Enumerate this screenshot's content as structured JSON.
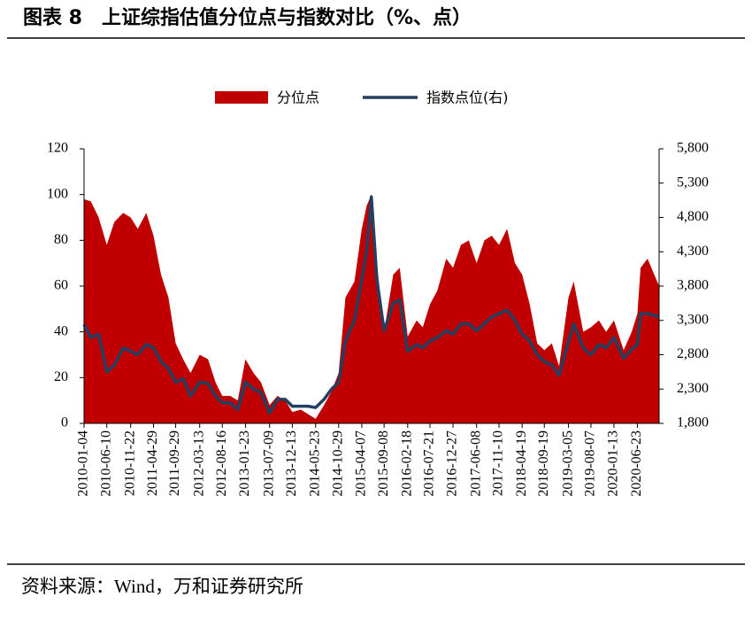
{
  "chart_data": {
    "type": "area-line",
    "title": "图表 8　上证综指估值分位点与指数对比（%、点）",
    "source": "资料来源：Wind，万和证券研究所",
    "x": [
      "2010-01-04",
      "2010-02-20",
      "2010-04-15",
      "2010-06-10",
      "2010-08-01",
      "2010-10-01",
      "2010-11-22",
      "2011-01-10",
      "2011-03-10",
      "2011-04-29",
      "2011-06-20",
      "2011-08-10",
      "2011-09-29",
      "2011-11-20",
      "2012-01-10",
      "2012-03-13",
      "2012-05-10",
      "2012-06-30",
      "2012-08-16",
      "2012-10-10",
      "2012-12-01",
      "2013-01-23",
      "2013-03-20",
      "2013-05-10",
      "2013-07-09",
      "2013-09-01",
      "2013-10-25",
      "2013-12-13",
      "2014-02-10",
      "2014-04-01",
      "2014-05-23",
      "2014-07-20",
      "2014-09-10",
      "2014-10-29",
      "2014-12-15",
      "2015-02-15",
      "2015-04-07",
      "2015-05-10",
      "2015-06-12",
      "2015-07-20",
      "2015-09-08",
      "2015-11-10",
      "2015-12-25",
      "2016-02-18",
      "2016-04-20",
      "2016-06-01",
      "2016-07-21",
      "2016-09-10",
      "2016-11-10",
      "2016-12-27",
      "2017-02-20",
      "2017-04-15",
      "2017-06-08",
      "2017-08-01",
      "2017-09-20",
      "2017-11-10",
      "2018-01-05",
      "2018-02-28",
      "2018-04-19",
      "2018-06-10",
      "2018-08-01",
      "2018-09-19",
      "2018-11-10",
      "2018-12-30",
      "2019-03-05",
      "2019-04-10",
      "2019-06-15",
      "2019-08-07",
      "2019-10-01",
      "2019-11-20",
      "2020-01-13",
      "2020-03-20",
      "2020-05-15",
      "2020-06-23",
      "2020-07-15",
      "2020-09-01",
      "2020-11-20"
    ],
    "series": [
      {
        "name": "分位点",
        "color": "#c00000",
        "axis": "y",
        "values": [
          98,
          97,
          90,
          78,
          88,
          92,
          90,
          85,
          92,
          82,
          65,
          55,
          35,
          28,
          22,
          30,
          28,
          18,
          12,
          12,
          10,
          28,
          22,
          18,
          8,
          12,
          10,
          5,
          6,
          4,
          2,
          8,
          14,
          22,
          55,
          62,
          85,
          95,
          100,
          70,
          40,
          65,
          68,
          38,
          45,
          42,
          52,
          58,
          72,
          68,
          78,
          80,
          70,
          80,
          82,
          78,
          85,
          70,
          65,
          52,
          35,
          32,
          35,
          25,
          55,
          62,
          40,
          42,
          45,
          40,
          45,
          32,
          40,
          48,
          68,
          72,
          60
        ]
      },
      {
        "name": "指数点位(右)",
        "color": "#243f60",
        "axis": "y2",
        "values": [
          3240,
          3050,
          3100,
          2550,
          2650,
          2900,
          2850,
          2800,
          2950,
          2900,
          2700,
          2600,
          2400,
          2450,
          2200,
          2400,
          2380,
          2200,
          2100,
          2100,
          2000,
          2400,
          2300,
          2250,
          1950,
          2150,
          2150,
          2050,
          2050,
          2050,
          2030,
          2150,
          2300,
          2400,
          3000,
          3300,
          3900,
          4300,
          5100,
          3900,
          3150,
          3550,
          3600,
          2850,
          2950,
          2900,
          3000,
          3050,
          3150,
          3100,
          3250,
          3250,
          3150,
          3250,
          3350,
          3400,
          3450,
          3300,
          3100,
          3000,
          2800,
          2700,
          2650,
          2500,
          3000,
          3250,
          2900,
          2800,
          2950,
          2900,
          3050,
          2750,
          2880,
          2950,
          3400,
          3400,
          3350
        ]
      }
    ],
    "xlim": [
      "2010-01-04",
      "2020-11-20"
    ],
    "xticks": [
      "2010-01-04",
      "2010-06-10",
      "2010-11-22",
      "2011-04-29",
      "2011-09-29",
      "2012-03-13",
      "2012-08-16",
      "2013-01-23",
      "2013-07-09",
      "2013-12-13",
      "2014-05-23",
      "2014-10-29",
      "2015-04-07",
      "2015-09-08",
      "2016-02-18",
      "2016-07-21",
      "2016-12-27",
      "2017-06-08",
      "2017-11-10",
      "2018-04-19",
      "2018-09-19",
      "2019-03-05",
      "2019-08-07",
      "2020-01-13",
      "2020-06-23"
    ],
    "ylim": [
      0,
      120
    ],
    "yticks": [
      0,
      20,
      40,
      60,
      80,
      100,
      120
    ],
    "y2lim": [
      1800,
      5800
    ],
    "y2ticks": [
      {
        "value": 1800,
        "label": "1,800"
      },
      {
        "value": 2300,
        "label": "2,300"
      },
      {
        "value": 2800,
        "label": "2,800"
      },
      {
        "value": 3300,
        "label": "3,300"
      },
      {
        "value": 3800,
        "label": "3,800"
      },
      {
        "value": 4300,
        "label": "4,300"
      },
      {
        "value": 4800,
        "label": "4,800"
      },
      {
        "value": 5300,
        "label": "5,300"
      },
      {
        "value": 5800,
        "label": "5,800"
      }
    ],
    "legend": "top"
  }
}
